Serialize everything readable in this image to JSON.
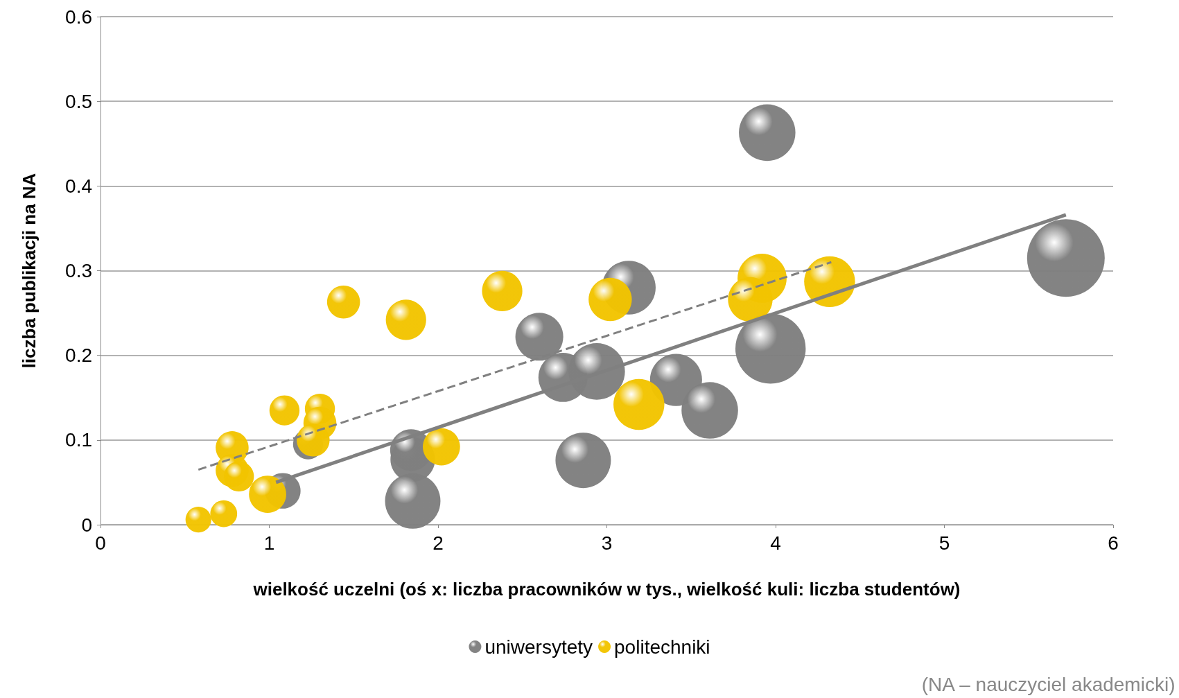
{
  "chart_data": {
    "type": "bubble",
    "xlabel": "wielkość uczelni (oś x: liczba pracowników w tys., wielkość kuli: liczba studentów)",
    "ylabel": "liczba publikacji na NA",
    "xlim": [
      0,
      6
    ],
    "xticks": [
      0,
      1,
      2,
      3,
      4,
      5,
      6
    ],
    "ylim": [
      0,
      0.6
    ],
    "yticks": [
      0,
      0.1,
      0.2,
      0.3,
      0.4,
      0.5,
      0.6
    ],
    "grid": "y",
    "legend": "bottom",
    "annotations": [
      "(NA – nauczyciel akademicki)"
    ],
    "series": [
      {
        "name": "uniwersytety",
        "color": "#7f7f7f",
        "marker": "circle",
        "x": [
          3.95,
          5.72,
          3.13,
          3.97,
          2.6,
          2.74,
          2.94,
          3.41,
          3.61,
          2.86,
          1.85,
          1.84,
          1.85,
          1.08,
          1.23
        ],
        "values": [
          0.463,
          0.315,
          0.28,
          0.208,
          0.222,
          0.174,
          0.181,
          0.171,
          0.135,
          0.076,
          0.077,
          0.088,
          0.028,
          0.04,
          0.095
        ],
        "sizes": [
          0.53,
          1,
          0.48,
          0.82,
          0.38,
          0.4,
          0.53,
          0.45,
          0.53,
          0.51,
          0.33,
          0.29,
          0.51,
          0.21,
          0.15
        ]
      },
      {
        "name": "politechniki",
        "color": "#f2c400",
        "marker": "circle",
        "x": [
          1.44,
          1.81,
          2.38,
          3.02,
          3.92,
          3.85,
          4.32,
          3.19,
          2.02,
          1.09,
          1.3,
          1.3,
          1.26,
          0.78,
          0.78,
          0.82,
          0.99,
          0.58,
          0.73
        ],
        "values": [
          0.263,
          0.242,
          0.276,
          0.266,
          0.291,
          0.266,
          0.287,
          0.142,
          0.092,
          0.135,
          0.137,
          0.12,
          0.1,
          0.091,
          0.064,
          0.057,
          0.036,
          0.006,
          0.013
        ],
        "sizes": [
          0.18,
          0.27,
          0.27,
          0.31,
          0.4,
          0.33,
          0.43,
          0.43,
          0.23,
          0.15,
          0.15,
          0.18,
          0.18,
          0.18,
          0.18,
          0.15,
          0.23,
          0.11,
          0.12
        ]
      },
      {
        "type": "line",
        "color": "#808080",
        "line_style": "solid",
        "marker": "none",
        "x": [
          1.04,
          5.72
        ],
        "values": [
          0.05,
          0.366
        ]
      },
      {
        "type": "line",
        "color": "#808080",
        "line_style": "dashed",
        "marker": "none",
        "x": [
          0.58,
          4.33
        ],
        "values": [
          0.065,
          0.31
        ]
      }
    ]
  }
}
